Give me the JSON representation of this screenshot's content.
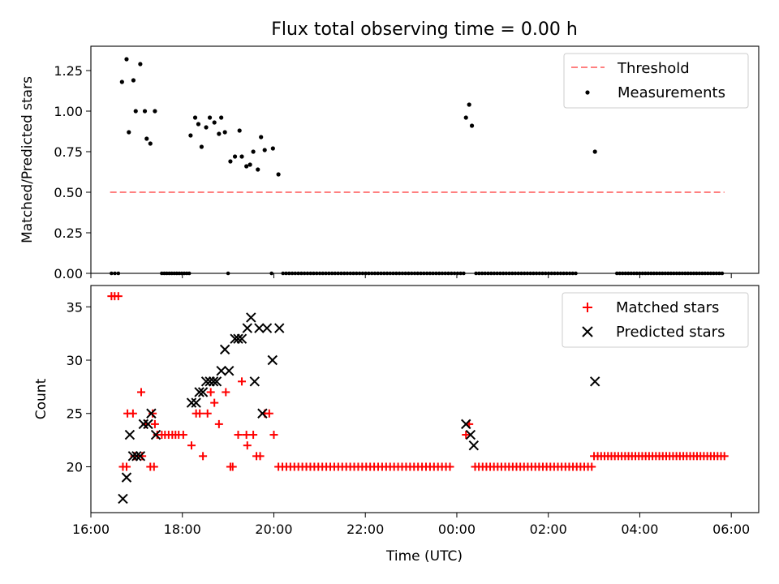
{
  "title": "Flux total observing time = 0.00 h",
  "chart_data": [
    {
      "type": "scatter",
      "ylabel": "Matched/Predicted stars",
      "xlim": [
        16.0,
        6.6
      ],
      "ylim": [
        0.0,
        1.4
      ],
      "yticks": [
        "0.00",
        "0.25",
        "0.50",
        "0.75",
        "1.00",
        "1.25"
      ],
      "yticks_values": [
        0.0,
        0.25,
        0.5,
        0.75,
        1.0,
        1.25
      ],
      "legend": [
        "Threshold",
        "Measurements"
      ],
      "threshold": {
        "name": "Threshold",
        "value": 0.5,
        "x_start": 16.42,
        "x_end": 5.85,
        "color": "#ff8080"
      },
      "measurements": {
        "name": "Measurements",
        "color": "#000000",
        "points": [
          [
            16.68,
            1.18
          ],
          [
            16.78,
            1.32
          ],
          [
            16.83,
            0.87
          ],
          [
            16.93,
            1.19
          ],
          [
            16.98,
            1.0
          ],
          [
            17.18,
            1.0
          ],
          [
            17.22,
            0.83
          ],
          [
            17.3,
            0.8
          ],
          [
            17.4,
            1.0
          ],
          [
            17.08,
            1.29
          ],
          [
            18.18,
            0.85
          ],
          [
            18.28,
            0.96
          ],
          [
            18.35,
            0.92
          ],
          [
            18.42,
            0.78
          ],
          [
            18.52,
            0.9
          ],
          [
            18.6,
            0.96
          ],
          [
            18.7,
            0.93
          ],
          [
            18.8,
            0.86
          ],
          [
            18.85,
            0.96
          ],
          [
            18.93,
            0.87
          ],
          [
            19.05,
            0.69
          ],
          [
            19.15,
            0.72
          ],
          [
            19.25,
            0.88
          ],
          [
            19.3,
            0.72
          ],
          [
            19.4,
            0.66
          ],
          [
            19.48,
            0.67
          ],
          [
            19.55,
            0.75
          ],
          [
            19.65,
            0.64
          ],
          [
            19.72,
            0.84
          ],
          [
            19.8,
            0.76
          ],
          [
            19.98,
            0.77
          ],
          [
            20.1,
            0.61
          ],
          [
            24.2,
            0.96
          ],
          [
            24.27,
            1.04
          ],
          [
            24.33,
            0.91
          ],
          [
            27.02,
            0.75
          ]
        ],
        "zeros": [
          [
            16.45,
            16.6,
            3
          ],
          [
            17.55,
            18.15,
            12
          ],
          [
            19.0,
            19.0,
            1
          ],
          [
            19.95,
            19.95,
            1
          ],
          [
            20.2,
            24.15,
            60
          ],
          [
            24.42,
            26.6,
            34
          ],
          [
            27.5,
            29.8,
            38
          ]
        ]
      }
    },
    {
      "type": "scatter",
      "xlabel": "Time (UTC)",
      "ylabel": "Count",
      "xlim": [
        16.0,
        6.6
      ],
      "ylim": [
        15.7,
        37.0
      ],
      "yticks": [
        "20",
        "25",
        "30",
        "35"
      ],
      "yticks_values": [
        20,
        25,
        30,
        35
      ],
      "xticks": [
        "16:00",
        "18:00",
        "20:00",
        "22:00",
        "00:00",
        "02:00",
        "04:00",
        "06:00"
      ],
      "xticks_values": [
        16,
        18,
        20,
        22,
        24,
        26,
        28,
        30
      ],
      "legend": [
        "Matched stars",
        "Predicted stars"
      ],
      "series": [
        {
          "name": "Matched stars",
          "marker": "+",
          "color": "#ff0000",
          "points": [
            [
              16.45,
              36
            ],
            [
              16.52,
              36
            ],
            [
              16.6,
              36
            ],
            [
              16.7,
              20
            ],
            [
              16.78,
              20
            ],
            [
              16.8,
              25
            ],
            [
              16.92,
              25
            ],
            [
              16.95,
              21
            ],
            [
              17.1,
              27
            ],
            [
              17.12,
              21
            ],
            [
              17.2,
              24
            ],
            [
              17.3,
              20
            ],
            [
              17.38,
              20
            ],
            [
              17.35,
              25
            ],
            [
              17.4,
              24
            ],
            [
              17.45,
              23
            ],
            [
              17.55,
              23
            ],
            [
              17.62,
              23
            ],
            [
              17.7,
              23
            ],
            [
              17.78,
              23
            ],
            [
              17.85,
              23
            ],
            [
              17.92,
              23
            ],
            [
              18.02,
              23
            ],
            [
              18.2,
              22
            ],
            [
              18.3,
              25
            ],
            [
              18.38,
              25
            ],
            [
              18.45,
              21
            ],
            [
              18.55,
              25
            ],
            [
              18.62,
              27
            ],
            [
              18.7,
              26
            ],
            [
              18.8,
              24
            ],
            [
              18.95,
              27
            ],
            [
              19.05,
              20
            ],
            [
              19.1,
              20
            ],
            [
              19.22,
              23
            ],
            [
              19.3,
              28
            ],
            [
              19.4,
              23
            ],
            [
              19.42,
              22
            ],
            [
              19.55,
              23
            ],
            [
              19.62,
              21
            ],
            [
              19.7,
              21
            ],
            [
              19.8,
              25
            ],
            [
              19.9,
              25
            ],
            [
              20.0,
              23
            ],
            [
              24.2,
              23
            ],
            [
              24.27,
              24
            ],
            [
              27.0,
              21
            ]
          ],
          "runs": [
            [
              20.1,
              23.85,
              20,
              44
            ],
            [
              24.4,
              26.95,
              20,
              32
            ],
            [
              27.08,
              29.85,
              21,
              38
            ]
          ]
        },
        {
          "name": "Predicted stars",
          "marker": "x",
          "color": "#000000",
          "points": [
            [
              16.7,
              17
            ],
            [
              16.78,
              19
            ],
            [
              16.85,
              23
            ],
            [
              16.92,
              21
            ],
            [
              17.0,
              21
            ],
            [
              17.08,
              21
            ],
            [
              17.15,
              24
            ],
            [
              17.25,
              24
            ],
            [
              17.32,
              25
            ],
            [
              17.42,
              23
            ],
            [
              18.2,
              26
            ],
            [
              18.3,
              26
            ],
            [
              18.37,
              27
            ],
            [
              18.45,
              27
            ],
            [
              18.52,
              28
            ],
            [
              18.6,
              28
            ],
            [
              18.68,
              28
            ],
            [
              18.75,
              28
            ],
            [
              18.85,
              29
            ],
            [
              18.93,
              31
            ],
            [
              19.02,
              29
            ],
            [
              19.15,
              32
            ],
            [
              19.22,
              32
            ],
            [
              19.3,
              32
            ],
            [
              19.42,
              33
            ],
            [
              19.5,
              34
            ],
            [
              19.58,
              28
            ],
            [
              19.68,
              33
            ],
            [
              19.75,
              25
            ],
            [
              19.85,
              33
            ],
            [
              19.97,
              30
            ],
            [
              20.12,
              33
            ],
            [
              24.2,
              24
            ],
            [
              24.3,
              23
            ],
            [
              24.37,
              22
            ],
            [
              27.02,
              28
            ]
          ]
        }
      ]
    }
  ]
}
